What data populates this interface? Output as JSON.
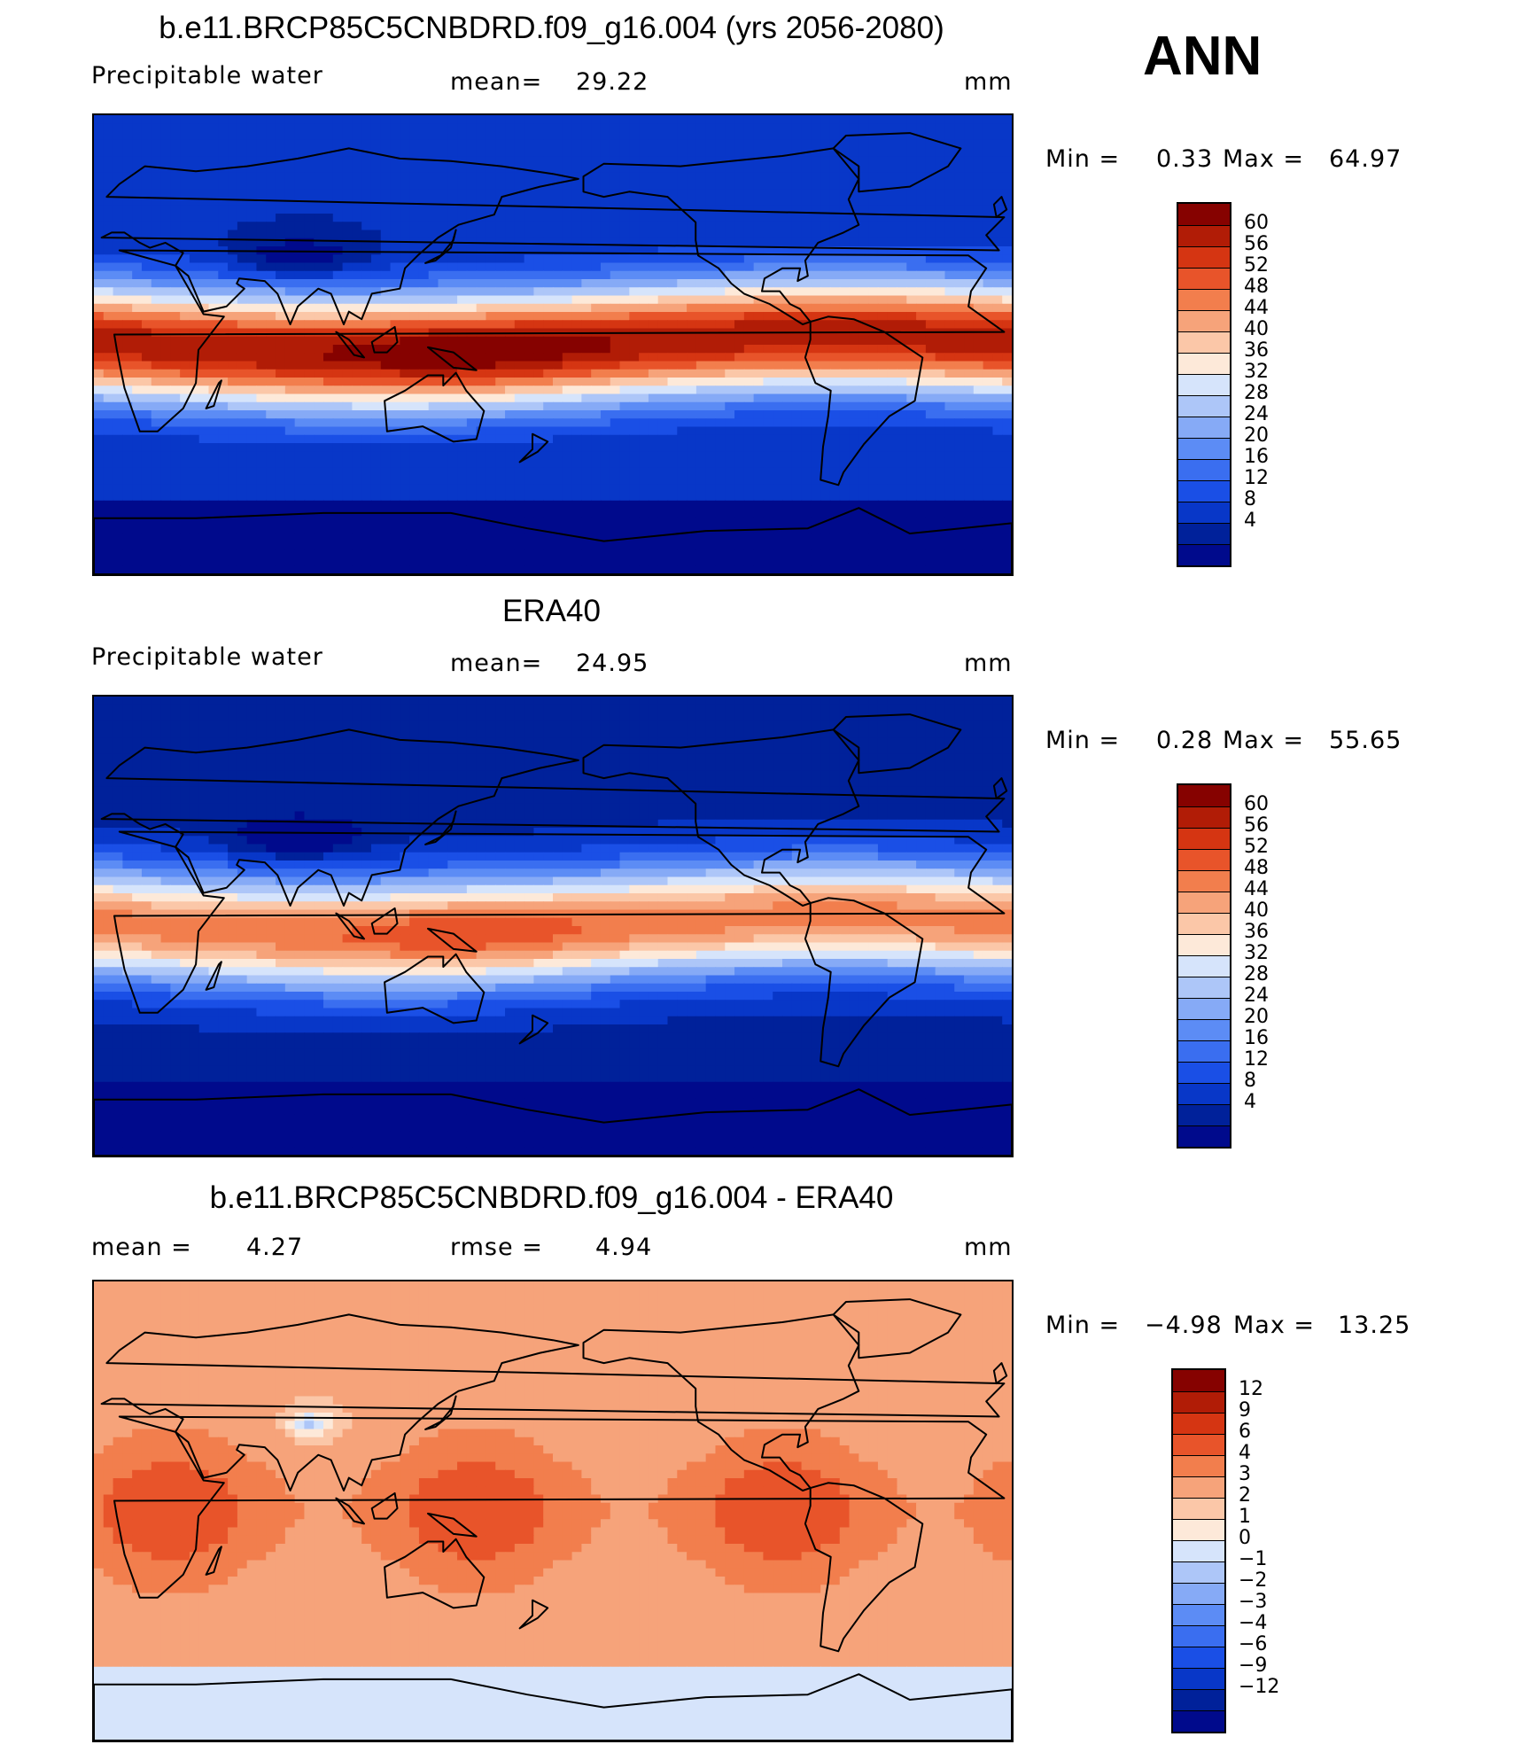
{
  "season": "ANN",
  "colors": {
    "abs": [
      "#000a8c",
      "#00219a",
      "#0837c8",
      "#1a4fe6",
      "#3a6ef0",
      "#5c8cf5",
      "#86aaf6",
      "#adc6f8",
      "#d6e4fb",
      "#fde9d9",
      "#fbc7a8",
      "#f6a37a",
      "#f27e4d",
      "#e8542a",
      "#d53512",
      "#b11c06",
      "#860200"
    ],
    "diff": [
      "#000a8c",
      "#00219a",
      "#0837c8",
      "#1a4fe6",
      "#3a6ef0",
      "#5c8cf5",
      "#86aaf6",
      "#adc6f8",
      "#d6e4fb",
      "#fde9d9",
      "#fbc7a8",
      "#f6a37a",
      "#f27e4d",
      "#e8542a",
      "#d53512",
      "#b11c06",
      "#860200"
    ]
  },
  "panels": [
    {
      "id": "model",
      "title": "b.e11.BRCP85C5CNBDRD.f09_g16.004 (yrs 2056-2080)",
      "left_label": "Precipitable  water",
      "stat_label": "mean=",
      "stat_value": "29.22",
      "stat2_label": "",
      "stat2_value": "",
      "units": "mm",
      "min_label": "Min =",
      "min_value": "0.33",
      "max_label": "Max =",
      "max_value": "64.97",
      "cbar_labels": [
        "60",
        "56",
        "52",
        "48",
        "44",
        "40",
        "36",
        "32",
        "28",
        "24",
        "20",
        "16",
        "12",
        "8",
        "4"
      ],
      "field": {
        "scale": "abs",
        "base": 8,
        "amp": 52,
        "wet": 1.05
      }
    },
    {
      "id": "obs",
      "title": "ERA40",
      "left_label": "Precipitable  water",
      "stat_label": "mean=",
      "stat_value": "24.95",
      "stat2_label": "",
      "stat2_value": "",
      "units": "mm",
      "min_label": "Min =",
      "min_value": "0.28",
      "max_label": "Max =",
      "max_value": "55.65",
      "cbar_labels": [
        "60",
        "56",
        "52",
        "48",
        "44",
        "40",
        "36",
        "32",
        "28",
        "24",
        "20",
        "16",
        "12",
        "8",
        "4"
      ],
      "field": {
        "scale": "abs",
        "base": 6,
        "amp": 46,
        "wet": 0.95
      }
    },
    {
      "id": "diff",
      "title": "b.e11.BRCP85C5CNBDRD.f09_g16.004 - ERA40",
      "left_label": "mean =",
      "stat_label": "",
      "stat_value": "4.27",
      "stat2_label": "rmse =",
      "stat2_value": "4.94",
      "units": "mm",
      "min_label": "Min =",
      "min_value": "−4.98",
      "max_label": "Max =",
      "max_value": "13.25",
      "cbar_labels": [
        "12",
        "9",
        "6",
        "4",
        "3",
        "2",
        "1",
        "0",
        "−1",
        "−2",
        "−3",
        "−4",
        "−6",
        "−9",
        "−12"
      ],
      "field": {
        "scale": "diff",
        "base": 0,
        "amp": 0,
        "wet": 1
      }
    }
  ]
}
